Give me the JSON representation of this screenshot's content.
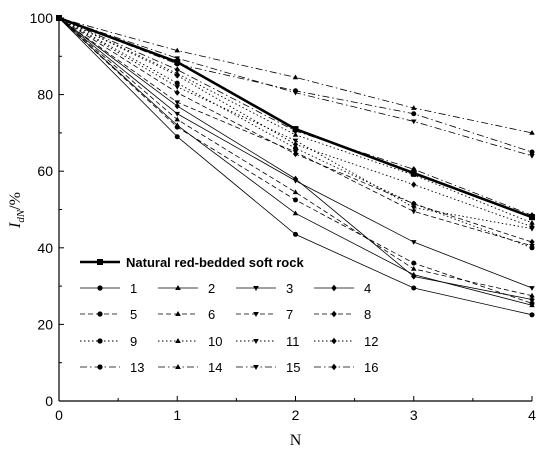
{
  "chart_data": {
    "type": "line",
    "xlabel": "N",
    "ylabel_main": "I",
    "ylabel_sub": "dN",
    "ylabel_suffix": "/%",
    "xlim": [
      0,
      4
    ],
    "ylim": [
      0,
      100
    ],
    "xticks": [
      "0",
      "1",
      "2",
      "3",
      "4"
    ],
    "yticks": [
      "0",
      "20",
      "40",
      "60",
      "80",
      "100"
    ],
    "x": [
      0,
      1,
      2,
      3,
      4
    ],
    "legend_position": "bottom-left",
    "series": [
      {
        "name": "Natural red-bedded soft rock",
        "values": [
          100,
          88.5,
          71,
          59.5,
          48
        ],
        "style": "solid",
        "marker": "square",
        "width": 2.6
      },
      {
        "name": "1",
        "values": [
          100,
          69,
          43.5,
          29.5,
          22.5
        ],
        "style": "solid",
        "marker": "circle",
        "width": 0.8
      },
      {
        "name": "2",
        "values": [
          100,
          72,
          49,
          33,
          25
        ],
        "style": "solid",
        "marker": "triangle-up",
        "width": 0.8
      },
      {
        "name": "3",
        "values": [
          100,
          75,
          57.5,
          41.5,
          29.5
        ],
        "style": "solid",
        "marker": "triangle-down",
        "width": 0.8
      },
      {
        "name": "4",
        "values": [
          100,
          77,
          58,
          32.5,
          26.5
        ],
        "style": "solid",
        "marker": "diamond",
        "width": 0.8
      },
      {
        "name": "5",
        "values": [
          100,
          71.5,
          52.5,
          36,
          25.5
        ],
        "style": "dashed",
        "marker": "circle",
        "width": 0.8
      },
      {
        "name": "6",
        "values": [
          100,
          73.5,
          54.5,
          34.5,
          27.5
        ],
        "style": "dashed",
        "marker": "triangle-up",
        "width": 0.8
      },
      {
        "name": "7",
        "values": [
          100,
          78,
          65,
          49.5,
          40.5
        ],
        "style": "dashed",
        "marker": "triangle-down",
        "width": 0.8
      },
      {
        "name": "8",
        "values": [
          100,
          80.5,
          64.5,
          51.5,
          41.5
        ],
        "style": "dashed",
        "marker": "diamond",
        "width": 0.8
      },
      {
        "name": "9",
        "values": [
          100,
          83,
          66,
          51.5,
          40
        ],
        "style": "dotted",
        "marker": "circle",
        "width": 0.9
      },
      {
        "name": "10",
        "values": [
          100,
          85.5,
          69.5,
          59,
          46.5
        ],
        "style": "dotted",
        "marker": "triangle-up",
        "width": 0.9
      },
      {
        "name": "11",
        "values": [
          100,
          82,
          68,
          50.5,
          45
        ],
        "style": "dotted",
        "marker": "triangle-down",
        "width": 0.9
      },
      {
        "name": "12",
        "values": [
          100,
          85,
          67,
          56.5,
          45.5
        ],
        "style": "dotted",
        "marker": "diamond",
        "width": 0.9
      },
      {
        "name": "13",
        "values": [
          100,
          88,
          81,
          75,
          65
        ],
        "style": "dashdot",
        "marker": "circle",
        "width": 0.8
      },
      {
        "name": "14",
        "values": [
          100,
          91.5,
          84.5,
          76.5,
          70
        ],
        "style": "dashdot",
        "marker": "triangle-up",
        "width": 0.8
      },
      {
        "name": "15",
        "values": [
          100,
          89.5,
          80.5,
          73,
          64
        ],
        "style": "dashdot",
        "marker": "triangle-down",
        "width": 0.8
      },
      {
        "name": "16",
        "values": [
          100,
          86.5,
          70.5,
          60.5,
          48.5
        ],
        "style": "dashdot",
        "marker": "diamond",
        "width": 0.8
      }
    ]
  }
}
